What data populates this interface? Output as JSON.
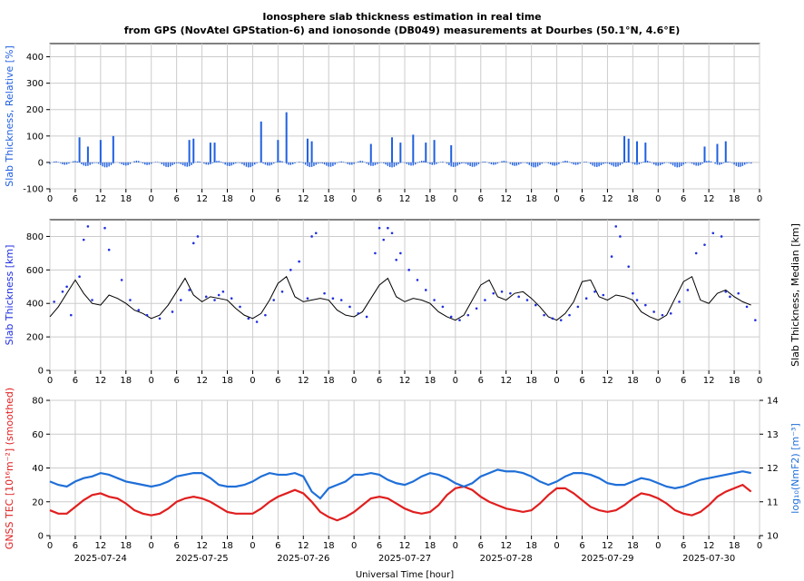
{
  "colors": {
    "relative": "#1f5fe0",
    "median": "#000000",
    "observed": "#1f2fe0",
    "tec": "#e01f1f",
    "nmf2": "#1f6fd8",
    "grid": "#cccccc"
  },
  "chart_data": [
    {
      "type": "bar",
      "title": "Ionosphere slab thickness estimation in real time",
      "subtitle": "from GPS (NovAtel GPStation-6) and ionosonde (DB049) measurements at Dourbes (50.1°N, 4.6°E)",
      "ylabel": "Slab Thickness, Relative [%]",
      "xlabel": "",
      "ylim": [
        -100,
        450
      ],
      "yticks": [
        -100,
        0,
        100,
        200,
        300,
        400
      ],
      "xlim": [
        0,
        168
      ],
      "xtick_labels": [
        "0",
        "6",
        "12",
        "18",
        "0",
        "6",
        "12",
        "18",
        "0",
        "6",
        "12",
        "18",
        "0",
        "6",
        "12",
        "18",
        "0",
        "6",
        "12",
        "18",
        "0",
        "6",
        "12",
        "18",
        "0",
        "6",
        "12",
        "18",
        "0"
      ],
      "spikes": [
        [
          7,
          95
        ],
        [
          9,
          60
        ],
        [
          12,
          85
        ],
        [
          15,
          100
        ],
        [
          33,
          85
        ],
        [
          34,
          90
        ],
        [
          38,
          75
        ],
        [
          39,
          75
        ],
        [
          50,
          155
        ],
        [
          54,
          85
        ],
        [
          56,
          190
        ],
        [
          61,
          90
        ],
        [
          62,
          80
        ],
        [
          76,
          70
        ],
        [
          81,
          95
        ],
        [
          83,
          75
        ],
        [
          86,
          105
        ],
        [
          89,
          75
        ],
        [
          91,
          85
        ],
        [
          95,
          65
        ],
        [
          136,
          100
        ],
        [
          137,
          90
        ],
        [
          139,
          80
        ],
        [
          141,
          75
        ],
        [
          155,
          60
        ],
        [
          158,
          70
        ],
        [
          160,
          80
        ]
      ]
    },
    {
      "type": "line",
      "ylabel": "Slab Thickness [km]",
      "ylabel_right": "Slab Thickness, Median [km]",
      "ylim": [
        0,
        900
      ],
      "yticks": [
        0,
        200,
        400,
        600,
        800
      ],
      "xlim": [
        0,
        168
      ],
      "xtick_labels": [
        "0",
        "6",
        "12",
        "18",
        "0",
        "6",
        "12",
        "18",
        "0",
        "6",
        "12",
        "18",
        "0",
        "6",
        "12",
        "18",
        "0",
        "6",
        "12",
        "18",
        "0",
        "6",
        "12",
        "18",
        "0",
        "6",
        "12",
        "18",
        "0"
      ],
      "series": [
        {
          "name": "",
          "style": "line",
          "x": [
            0,
            2,
            4,
            6,
            8,
            10,
            12,
            14,
            16,
            18,
            20,
            22,
            24,
            26,
            28,
            30,
            32,
            34,
            36,
            38,
            40,
            42,
            44,
            46,
            48,
            50,
            52,
            54,
            56,
            58,
            60,
            62,
            64,
            66,
            68,
            70,
            72,
            74,
            76,
            78,
            80,
            82,
            84,
            86,
            88,
            90,
            92,
            94,
            96,
            98,
            100,
            102,
            104,
            106,
            108,
            110,
            112,
            114,
            116,
            118,
            120,
            122,
            124,
            126,
            128,
            130,
            132,
            134,
            136,
            138,
            140,
            142,
            144,
            146,
            148,
            150,
            152,
            154,
            156,
            158,
            160,
            162,
            164,
            166
          ],
          "values": [
            320,
            380,
            460,
            540,
            460,
            400,
            390,
            450,
            430,
            400,
            360,
            340,
            310,
            330,
            390,
            470,
            550,
            450,
            410,
            440,
            430,
            420,
            370,
            330,
            310,
            340,
            420,
            520,
            560,
            440,
            410,
            420,
            430,
            420,
            360,
            330,
            320,
            350,
            430,
            510,
            550,
            440,
            410,
            430,
            420,
            400,
            350,
            320,
            300,
            330,
            420,
            510,
            540,
            440,
            420,
            460,
            470,
            430,
            380,
            320,
            300,
            340,
            410,
            530,
            540,
            440,
            420,
            450,
            440,
            420,
            350,
            320,
            300,
            330,
            430,
            530,
            560,
            420,
            400,
            460,
            480,
            440,
            410,
            390
          ]
        },
        {
          "name": "",
          "style": "dots",
          "x": [
            1,
            3,
            4,
            5,
            7,
            8,
            9,
            10,
            13,
            14,
            17,
            19,
            21,
            23,
            26,
            29,
            31,
            33,
            34,
            35,
            37,
            39,
            40,
            41,
            43,
            45,
            47,
            49,
            51,
            53,
            55,
            57,
            59,
            61,
            62,
            63,
            65,
            67,
            69,
            71,
            73,
            75,
            77,
            78,
            79,
            80,
            81,
            82,
            83,
            85,
            87,
            89,
            91,
            93,
            95,
            97,
            99,
            101,
            103,
            105,
            107,
            109,
            111,
            113,
            115,
            117,
            119,
            121,
            123,
            125,
            127,
            129,
            131,
            133,
            134,
            135,
            137,
            138,
            139,
            141,
            143,
            145,
            147,
            149,
            151,
            153,
            155,
            157,
            159,
            160,
            161,
            163,
            165,
            167
          ],
          "values": [
            410,
            470,
            500,
            330,
            560,
            780,
            860,
            420,
            850,
            720,
            540,
            420,
            360,
            330,
            310,
            350,
            420,
            480,
            760,
            800,
            440,
            420,
            450,
            470,
            430,
            380,
            310,
            290,
            330,
            420,
            470,
            600,
            650,
            430,
            800,
            820,
            460,
            430,
            420,
            380,
            340,
            320,
            700,
            850,
            780,
            850,
            820,
            660,
            700,
            600,
            540,
            480,
            420,
            380,
            320,
            300,
            330,
            370,
            420,
            460,
            470,
            460,
            440,
            420,
            390,
            330,
            310,
            300,
            330,
            380,
            430,
            470,
            450,
            680,
            860,
            800,
            620,
            460,
            420,
            390,
            350,
            330,
            340,
            410,
            480,
            700,
            750,
            820,
            800,
            470,
            440,
            460,
            380,
            300
          ]
        }
      ]
    },
    {
      "type": "line",
      "ylabel": "GNSS TEC [10¹⁶m⁻²] (smoothed)",
      "ylabel_right": "log₁₀(NmF2) [m⁻³]",
      "ylim": [
        0,
        80
      ],
      "yticks": [
        0,
        20,
        40,
        60,
        80
      ],
      "ylim_right": [
        10,
        14
      ],
      "yticks_right": [
        10,
        11,
        12,
        13,
        14
      ],
      "xlim": [
        0,
        168
      ],
      "xtick_labels": [
        "0",
        "6",
        "12",
        "18",
        "0",
        "6",
        "12",
        "18",
        "0",
        "6",
        "12",
        "18",
        "0",
        "6",
        "12",
        "18",
        "0",
        "6",
        "12",
        "18",
        "0",
        "6",
        "12",
        "18",
        "0",
        "6",
        "12",
        "18",
        "0"
      ],
      "date_labels": [
        "2025-07-24",
        "2025-07-25",
        "2025-07-26",
        "2025-07-27",
        "2025-07-28",
        "2025-07-29",
        "2025-07-30"
      ],
      "xlabel": "Universal Time [hour]",
      "series": [
        {
          "name": "",
          "axis": "left",
          "x": [
            0,
            2,
            4,
            6,
            8,
            10,
            12,
            14,
            16,
            18,
            20,
            22,
            24,
            26,
            28,
            30,
            32,
            34,
            36,
            38,
            40,
            42,
            44,
            46,
            48,
            50,
            52,
            54,
            56,
            58,
            60,
            62,
            64,
            66,
            68,
            70,
            72,
            74,
            76,
            78,
            80,
            82,
            84,
            86,
            88,
            90,
            92,
            94,
            96,
            98,
            100,
            102,
            104,
            106,
            108,
            110,
            112,
            114,
            116,
            118,
            120,
            122,
            124,
            126,
            128,
            130,
            132,
            134,
            136,
            138,
            140,
            142,
            144,
            146,
            148,
            150,
            152,
            154,
            156,
            158,
            160,
            162,
            164,
            166
          ],
          "values": [
            15,
            13,
            13,
            17,
            21,
            24,
            25,
            23,
            22,
            19,
            15,
            13,
            12,
            13,
            16,
            20,
            22,
            23,
            22,
            20,
            17,
            14,
            13,
            13,
            13,
            16,
            20,
            23,
            25,
            27,
            25,
            20,
            14,
            11,
            9,
            11,
            14,
            18,
            22,
            23,
            22,
            19,
            16,
            14,
            13,
            14,
            18,
            24,
            28,
            29,
            27,
            23,
            20,
            18,
            16,
            15,
            14,
            15,
            19,
            24,
            28,
            28,
            25,
            21,
            17,
            15,
            14,
            15,
            18,
            22,
            25,
            24,
            22,
            19,
            15,
            13,
            12,
            14,
            18,
            23,
            26,
            28,
            30,
            26
          ]
        },
        {
          "name": "",
          "axis": "right",
          "x": [
            0,
            2,
            4,
            6,
            8,
            10,
            12,
            14,
            16,
            18,
            20,
            22,
            24,
            26,
            28,
            30,
            32,
            34,
            36,
            38,
            40,
            42,
            44,
            46,
            48,
            50,
            52,
            54,
            56,
            58,
            60,
            62,
            64,
            66,
            68,
            70,
            72,
            74,
            76,
            78,
            80,
            82,
            84,
            86,
            88,
            90,
            92,
            94,
            96,
            98,
            100,
            102,
            104,
            106,
            108,
            110,
            112,
            114,
            116,
            118,
            120,
            122,
            124,
            126,
            128,
            130,
            132,
            134,
            136,
            138,
            140,
            142,
            144,
            146,
            148,
            150,
            152,
            154,
            156,
            158,
            160,
            162,
            164,
            166
          ],
          "values": [
            11.6,
            11.5,
            11.45,
            11.6,
            11.7,
            11.75,
            11.85,
            11.8,
            11.7,
            11.6,
            11.55,
            11.5,
            11.45,
            11.5,
            11.6,
            11.75,
            11.8,
            11.85,
            11.85,
            11.7,
            11.5,
            11.45,
            11.45,
            11.5,
            11.6,
            11.75,
            11.85,
            11.8,
            11.8,
            11.85,
            11.75,
            11.3,
            11.1,
            11.4,
            11.5,
            11.6,
            11.8,
            11.8,
            11.85,
            11.8,
            11.65,
            11.55,
            11.5,
            11.6,
            11.75,
            11.85,
            11.8,
            11.7,
            11.55,
            11.45,
            11.55,
            11.75,
            11.85,
            11.95,
            11.9,
            11.9,
            11.85,
            11.75,
            11.6,
            11.5,
            11.6,
            11.75,
            11.85,
            11.85,
            11.8,
            11.7,
            11.55,
            11.5,
            11.5,
            11.6,
            11.7,
            11.65,
            11.55,
            11.45,
            11.4,
            11.45,
            11.55,
            11.65,
            11.7,
            11.75,
            11.8,
            11.85,
            11.9,
            11.85
          ]
        }
      ]
    }
  ]
}
